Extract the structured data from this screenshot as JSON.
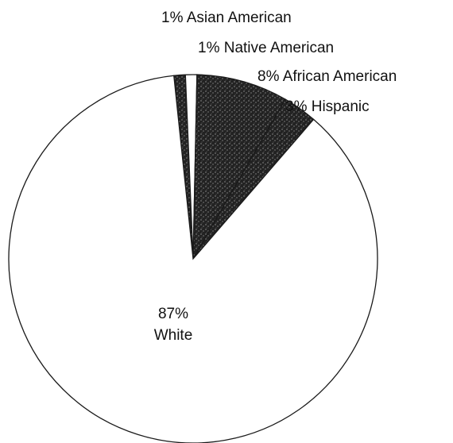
{
  "chart_data": {
    "type": "pie",
    "title": "",
    "slices": [
      {
        "label": "Asian American",
        "value": 1,
        "display": "1% Asian American",
        "color": "#3a3a3a"
      },
      {
        "label": "Native American",
        "value": 1,
        "display": "1% Native American",
        "color": "#ffffff"
      },
      {
        "label": "African American",
        "value": 8,
        "display": "8% African American",
        "color": "#2a2a2a"
      },
      {
        "label": "Hispanic",
        "value": 3,
        "display": "3% Hispanic",
        "color": "#3a3a3a"
      },
      {
        "label": "White",
        "value": 87,
        "display_pct": "87%",
        "display_name": "White",
        "color": "#ffffff"
      }
    ],
    "start_angle_deg": -6,
    "direction": "clockwise",
    "outline_color": "#1a1a1a"
  }
}
